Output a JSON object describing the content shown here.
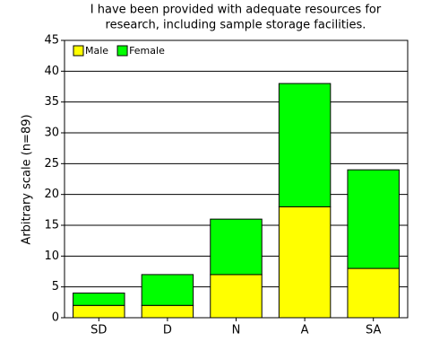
{
  "chart_data": {
    "type": "stacked_bar",
    "title": [
      "I have been provided with adequate resources for",
      "research, including sample storage facilities."
    ],
    "y_label": "Arbitrary scale (n=89)",
    "categories": [
      "SD",
      "D",
      "N",
      "A",
      "SA"
    ],
    "series": [
      {
        "name": "Male",
        "color": "#ffff00",
        "values": [
          2,
          2,
          7,
          18,
          8
        ]
      },
      {
        "name": "Female",
        "color": "#00ff00",
        "values": [
          2,
          5,
          9,
          20,
          16
        ]
      }
    ],
    "ylim": [
      0,
      45
    ],
    "yticks": [
      0,
      5,
      10,
      15,
      20,
      25,
      30,
      35,
      40,
      45
    ],
    "grid": true,
    "legend": "upper-left"
  }
}
